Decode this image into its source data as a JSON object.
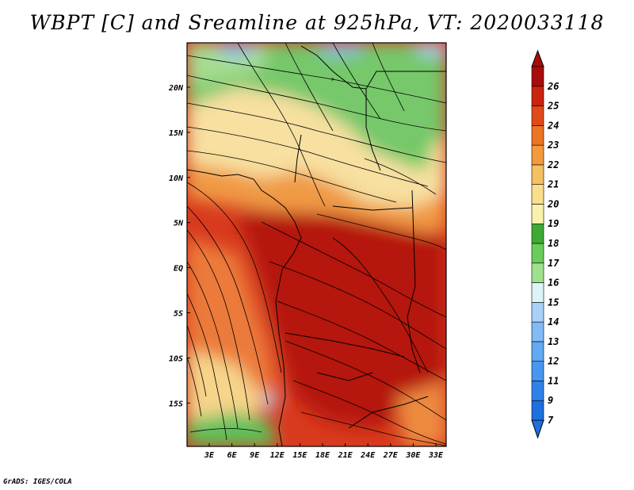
{
  "title": "WBPT [C] and Sreamline at 925hPa, VT: 2020033118",
  "credit": "GrADS: IGES/COLA",
  "map": {
    "variable": "WBPT",
    "unit": "C",
    "level_hPa": 925,
    "valid_time": "2020033118",
    "lon_ticks": [
      "3E",
      "6E",
      "9E",
      "12E",
      "15E",
      "18E",
      "21E",
      "24E",
      "27E",
      "30E",
      "33E"
    ],
    "lat_ticks": [
      "20N",
      "15N",
      "10N",
      "5N",
      "EQ",
      "5S",
      "10S",
      "15S"
    ]
  },
  "colorbar": {
    "labels": [
      "7",
      "9",
      "11",
      "12",
      "13",
      "14",
      "15",
      "16",
      "17",
      "18",
      "19",
      "20",
      "21",
      "22",
      "23",
      "24",
      "25",
      "26"
    ],
    "colors": [
      "#1e6fe0",
      "#2f82ea",
      "#4796ef",
      "#62a8f2",
      "#82baf5",
      "#a9d0f7",
      "#ddf3f8",
      "#9fe08e",
      "#6bcb5b",
      "#3eaa35",
      "#f8f2ac",
      "#f7df8e",
      "#f4c064",
      "#f29a3c",
      "#ec7422",
      "#e04a18",
      "#c82410",
      "#a80c0a"
    ],
    "arrow_low": "#1e6fe0",
    "arrow_high": "#a80c0a"
  },
  "icons": {
    "colorbar_up": "triangle-up",
    "colorbar_down": "triangle-down"
  }
}
